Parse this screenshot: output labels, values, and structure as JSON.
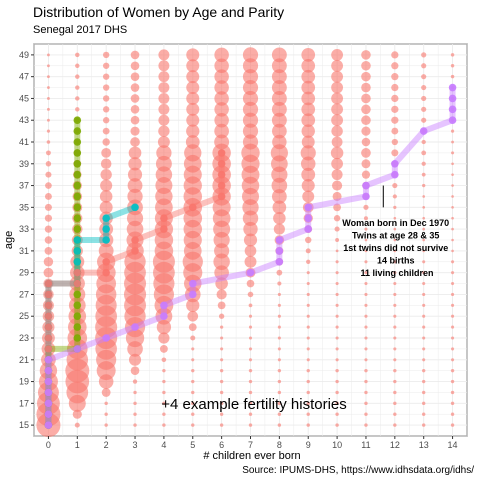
{
  "chart_data": {
    "type": "scatter",
    "title": "Distribution of Women by Age and Parity",
    "subtitle": "Senegal 2017 DHS",
    "xlabel": "# children ever born",
    "ylabel": "age",
    "caption": "Source: IPUMS-DHS, https://www.idhsdata.org/idhs/",
    "xlim": [
      -0.5,
      14.5
    ],
    "ylim": [
      14,
      50
    ],
    "x_ticks": [
      0,
      1,
      2,
      3,
      4,
      5,
      6,
      7,
      8,
      9,
      10,
      11,
      12,
      13,
      14
    ],
    "y_ticks": [
      15,
      17,
      19,
      21,
      23,
      25,
      27,
      29,
      31,
      33,
      35,
      37,
      39,
      41,
      43,
      45,
      47,
      49
    ],
    "grid": true,
    "bubble_color": "#f8766d",
    "big_label": "+4 example fertility histories",
    "annotation": {
      "lines": [
        "Woman born in Dec 1970",
        "Twins at age 28 & 35",
        "1st twins did not survive",
        "14 births",
        "11 living children"
      ],
      "pointer_x": 11.6,
      "pointer_y": [
        35,
        37
      ]
    },
    "series": [
      {
        "color": "#7caa00",
        "points": [
          [
            0,
            15
          ],
          [
            0,
            16
          ],
          [
            0,
            17
          ],
          [
            0,
            18
          ],
          [
            0,
            19
          ],
          [
            0,
            20
          ],
          [
            0,
            21
          ],
          [
            0,
            22
          ],
          [
            1,
            22
          ],
          [
            1,
            23
          ],
          [
            1,
            24
          ],
          [
            1,
            25
          ],
          [
            1,
            26
          ],
          [
            1,
            27
          ],
          [
            1,
            28
          ],
          [
            1,
            29
          ],
          [
            1,
            30
          ],
          [
            1,
            31
          ],
          [
            1,
            32
          ],
          [
            1,
            33
          ],
          [
            1,
            34
          ],
          [
            1,
            35
          ],
          [
            1,
            36
          ],
          [
            1,
            37
          ],
          [
            1,
            38
          ],
          [
            1,
            39
          ],
          [
            1,
            40
          ],
          [
            1,
            41
          ],
          [
            1,
            42
          ],
          [
            1,
            43
          ]
        ]
      },
      {
        "color": "#00bfc4",
        "points": [
          [
            0,
            15
          ],
          [
            0,
            16
          ],
          [
            0,
            17
          ],
          [
            0,
            18
          ],
          [
            0,
            19
          ],
          [
            0,
            20
          ],
          [
            0,
            21
          ],
          [
            0,
            22
          ],
          [
            0,
            23
          ],
          [
            0,
            24
          ],
          [
            0,
            25
          ],
          [
            0,
            26
          ],
          [
            0,
            27
          ],
          [
            0,
            28
          ],
          [
            1,
            28
          ],
          [
            1,
            29
          ],
          [
            1,
            30
          ],
          [
            1,
            31
          ],
          [
            1,
            32
          ],
          [
            2,
            32
          ],
          [
            2,
            33
          ],
          [
            2,
            34
          ],
          [
            3,
            35
          ]
        ]
      },
      {
        "color": "#f8766d",
        "points": [
          [
            0,
            15
          ],
          [
            0,
            16
          ],
          [
            0,
            17
          ],
          [
            0,
            18
          ],
          [
            0,
            19
          ],
          [
            0,
            20
          ],
          [
            0,
            21
          ],
          [
            0,
            22
          ],
          [
            0,
            23
          ],
          [
            0,
            24
          ],
          [
            0,
            25
          ],
          [
            0,
            26
          ],
          [
            0,
            27
          ],
          [
            0,
            28
          ],
          [
            1,
            28
          ],
          [
            1,
            29
          ],
          [
            2,
            29
          ],
          [
            2,
            30
          ],
          [
            3,
            31
          ],
          [
            3,
            32
          ],
          [
            4,
            33
          ],
          [
            4,
            34
          ],
          [
            5,
            35
          ],
          [
            6,
            36
          ],
          [
            6,
            37
          ],
          [
            6,
            38
          ],
          [
            6,
            39
          ],
          [
            6,
            40
          ]
        ]
      },
      {
        "color": "#c77cff",
        "points": [
          [
            0,
            15
          ],
          [
            0,
            16
          ],
          [
            0,
            17
          ],
          [
            0,
            18
          ],
          [
            0,
            19
          ],
          [
            0,
            20
          ],
          [
            0,
            21
          ],
          [
            1,
            22
          ],
          [
            2,
            23
          ],
          [
            3,
            24
          ],
          [
            4,
            25
          ],
          [
            4,
            26
          ],
          [
            5,
            27
          ],
          [
            5,
            28
          ],
          [
            7,
            29
          ],
          [
            8,
            30
          ],
          [
            8,
            31
          ],
          [
            8,
            32
          ],
          [
            9,
            33
          ],
          [
            9,
            34
          ],
          [
            9,
            35
          ],
          [
            11,
            36
          ],
          [
            11,
            37
          ],
          [
            12,
            38
          ],
          [
            12,
            39
          ],
          [
            13,
            42
          ],
          [
            14,
            43
          ],
          [
            14,
            44
          ],
          [
            14,
            45
          ],
          [
            14,
            46
          ]
        ]
      }
    ]
  }
}
